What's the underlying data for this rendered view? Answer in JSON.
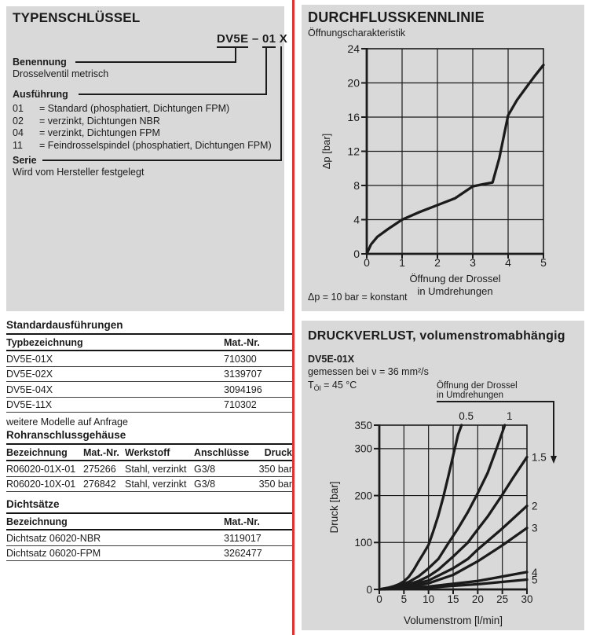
{
  "colors": {
    "panel_bg": "#d9d9da",
    "divider_red": "#e03232",
    "ink": "#1b1b1b"
  },
  "panels": {
    "typenschluessel": {
      "title": "TYPENSCHLÜSSEL",
      "type_code": {
        "part1": "DV5E",
        "dash": "–",
        "part2": "01",
        "part3": "X"
      },
      "benennung": {
        "label": "Benennung",
        "text": "Drosselventil metrisch"
      },
      "ausfuehrung": {
        "label": "Ausführung",
        "options": [
          {
            "code": "01",
            "desc": "= Standard (phosphatiert, Dichtungen FPM)"
          },
          {
            "code": "02",
            "desc": "= verzinkt, Dichtungen NBR"
          },
          {
            "code": "04",
            "desc": "= verzinkt, Dichtungen FPM"
          },
          {
            "code": "11",
            "desc": "= Feindrosselspindel (phosphatiert, Dichtungen FPM)"
          }
        ]
      },
      "serie": {
        "label": "Serie",
        "text": "Wird vom Hersteller festgelegt"
      }
    },
    "durchfluss": {
      "title": "DURCHFLUSSKENNLINIE",
      "subtitle": "Öffnungscharakteristik",
      "footnote": "Δp = 10 bar = konstant"
    },
    "standard": {
      "title": "Standardausführungen",
      "columns": [
        "Typbezeichnung",
        "Mat.-Nr."
      ],
      "rows": [
        [
          "DV5E-01X",
          "710300"
        ],
        [
          "DV5E-02X",
          "3139707"
        ],
        [
          "DV5E-04X",
          "3094196"
        ],
        [
          "DV5E-11X",
          "710302"
        ]
      ],
      "note": "weitere Modelle auf Anfrage"
    },
    "rohr": {
      "title": "Rohranschlussgehäuse",
      "columns": [
        "Bezeichnung",
        "Mat.-Nr.",
        "Werkstoff",
        "Anschlüsse",
        "Druck"
      ],
      "rows": [
        [
          "R06020-01X-01",
          "275266",
          "Stahl, verzinkt",
          "G3/8",
          "350 bar"
        ],
        [
          "R06020-10X-01",
          "276842",
          "Stahl, verzinkt",
          "G3/8",
          "350 bar"
        ]
      ]
    },
    "dicht": {
      "title": "Dichtsätze",
      "columns": [
        "Bezeichnung",
        "Mat.-Nr."
      ],
      "rows": [
        [
          "Dichtsatz 06020-NBR",
          "3119017"
        ],
        [
          "Dichtsatz 06020-FPM",
          "3262477"
        ]
      ]
    },
    "druckverlust": {
      "title": "DRUCKVERLUST, volumenstromabhängig",
      "model": "DV5E-01X",
      "cond1": "gemessen bei ν = 36 mm²/s",
      "cond2_base": "T",
      "cond2_sub": "Öl",
      "cond2_rest": " = 45 °C",
      "annotation_line1": "Öffnung der Drossel",
      "annotation_line2": "in Umdrehungen"
    }
  },
  "chart_data": [
    {
      "type": "line",
      "title": "Öffnungscharakteristik",
      "ylabel": "Δp [bar]",
      "xlabel_caption": [
        "Öffnung der Drossel",
        "in Umdrehungen"
      ],
      "xlim": [
        0,
        5
      ],
      "ylim": [
        0,
        24
      ],
      "xticks": [
        0,
        1,
        2,
        3,
        4,
        5
      ],
      "yticks": [
        0,
        4,
        8,
        12,
        16,
        20,
        24
      ],
      "grid": true,
      "show_series_labels": false,
      "series": [
        {
          "name": "Öffnungscharakteristik",
          "points": [
            [
              0,
              0
            ],
            [
              0.12,
              1.1
            ],
            [
              0.3,
              2.0
            ],
            [
              0.6,
              2.9
            ],
            [
              1,
              4.0
            ],
            [
              1.5,
              4.9
            ],
            [
              2,
              5.7
            ],
            [
              2.5,
              6.5
            ],
            [
              3,
              7.9
            ],
            [
              3.3,
              8.15
            ],
            [
              3.56,
              8.35
            ],
            [
              3.75,
              11.2
            ],
            [
              3.9,
              14.2
            ],
            [
              4.0,
              16.2
            ],
            [
              4.25,
              18.0
            ],
            [
              4.5,
              19.4
            ],
            [
              4.75,
              20.8
            ],
            [
              5,
              22.1
            ]
          ]
        }
      ]
    },
    {
      "type": "line",
      "title": "Druckverlust DV5E-01X",
      "ylabel": "Druck [bar]",
      "xlabel_caption": [
        "Volumenstrom [l/min]"
      ],
      "xlim": [
        0,
        30
      ],
      "ylim": [
        0,
        350
      ],
      "xticks": [
        0,
        5,
        10,
        15,
        20,
        25,
        30
      ],
      "yticks": [
        0,
        100,
        200,
        300,
        350
      ],
      "grid": true,
      "show_series_labels": true,
      "series": [
        {
          "name": "0.5",
          "points": [
            [
              0,
              0
            ],
            [
              1,
              2
            ],
            [
              2,
              4
            ],
            [
              3,
              7
            ],
            [
              4,
              11
            ],
            [
              5,
              17
            ],
            [
              6,
              27
            ],
            [
              7,
              42
            ],
            [
              8,
              60
            ],
            [
              9,
              77
            ],
            [
              10,
              95
            ],
            [
              11,
              125
            ],
            [
              12,
              158
            ],
            [
              13,
              197
            ],
            [
              14,
              240
            ],
            [
              15,
              285
            ],
            [
              16,
              330
            ],
            [
              16.7,
              350
            ]
          ]
        },
        {
          "name": "1",
          "points": [
            [
              0,
              0
            ],
            [
              2,
              3
            ],
            [
              4,
              8
            ],
            [
              6,
              16
            ],
            [
              8,
              28
            ],
            [
              10,
              45
            ],
            [
              12,
              65
            ],
            [
              14,
              98
            ],
            [
              16,
              130
            ],
            [
              18,
              165
            ],
            [
              20,
              205
            ],
            [
              22,
              248
            ],
            [
              24,
              305
            ],
            [
              25.5,
              350
            ]
          ]
        },
        {
          "name": "1.5",
          "points": [
            [
              0,
              0
            ],
            [
              5,
              8
            ],
            [
              8,
              18
            ],
            [
              10,
              28
            ],
            [
              12,
              42
            ],
            [
              15,
              70
            ],
            [
              18,
              100
            ],
            [
              20,
              128
            ],
            [
              22,
              155
            ],
            [
              25,
              202
            ],
            [
              27,
              235
            ],
            [
              30,
              282
            ]
          ]
        },
        {
          "name": "2",
          "points": [
            [
              0,
              0
            ],
            [
              5,
              6
            ],
            [
              10,
              19
            ],
            [
              15,
              45
            ],
            [
              18,
              65
            ],
            [
              20,
              85
            ],
            [
              25,
              130
            ],
            [
              30,
              178
            ]
          ]
        },
        {
          "name": "3",
          "points": [
            [
              0,
              0
            ],
            [
              5,
              4
            ],
            [
              10,
              13
            ],
            [
              15,
              31
            ],
            [
              20,
              60
            ],
            [
              25,
              94
            ],
            [
              30,
              131
            ]
          ]
        },
        {
          "name": "4",
          "points": [
            [
              0,
              0
            ],
            [
              10,
              6
            ],
            [
              20,
              18
            ],
            [
              30,
              37
            ]
          ]
        },
        {
          "name": "5",
          "points": [
            [
              0,
              0
            ],
            [
              10,
              4
            ],
            [
              20,
              11
            ],
            [
              30,
              21
            ]
          ]
        }
      ]
    }
  ]
}
